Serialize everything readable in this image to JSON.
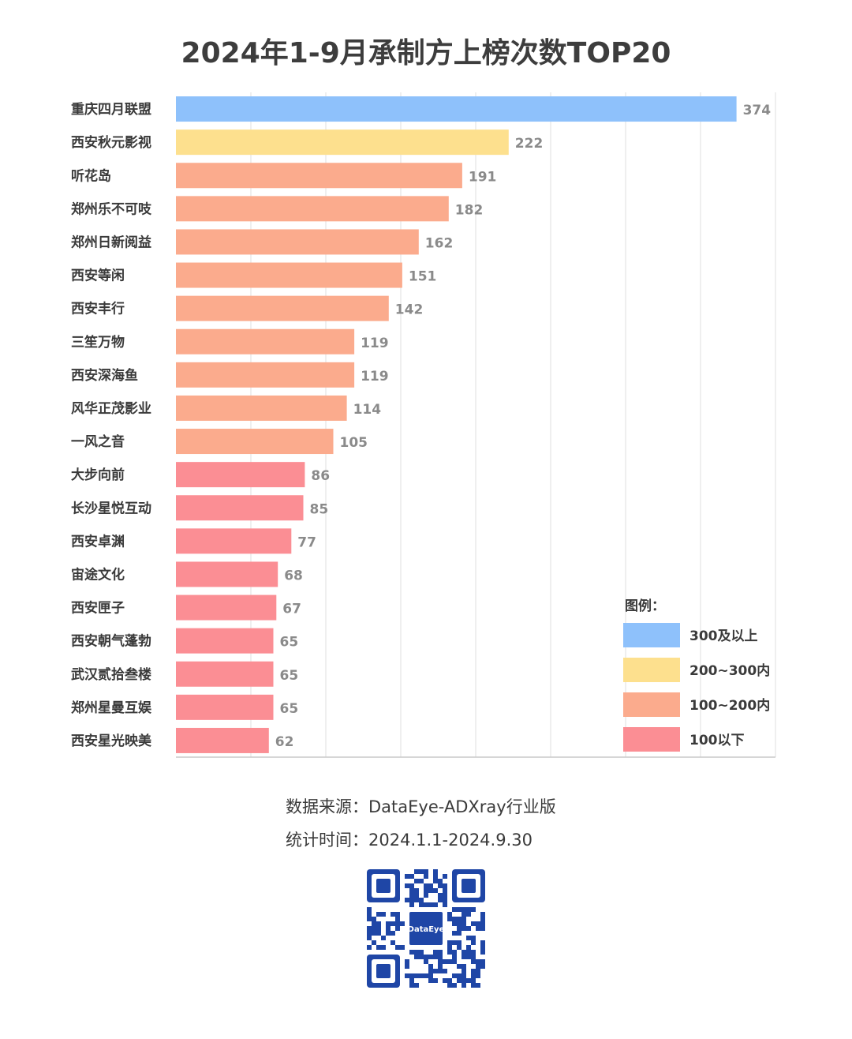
{
  "title": "2024年1-9月承制方上榜次数TOP20",
  "chart_data": {
    "type": "bar",
    "orientation": "horizontal",
    "title": "2024年1-9月承制方上榜次数TOP20",
    "categories": [
      "重庆四月联盟",
      "西安秋元影视",
      "听花岛",
      "郑州乐不可吱",
      "郑州日新阅益",
      "西安等闲",
      "西安丰行",
      "三笙万物",
      "西安深海鱼",
      "风华正茂影业",
      "一风之音",
      "大步向前",
      "长沙星悦互动",
      "西安卓渊",
      "宙途文化",
      "西安匣子",
      "西安朝气蓬勃",
      "武汉贰拾叁楼",
      "郑州星曼互娱",
      "西安星光映美"
    ],
    "values": [
      374,
      222,
      191,
      182,
      162,
      151,
      142,
      119,
      119,
      114,
      105,
      86,
      85,
      77,
      68,
      67,
      65,
      65,
      65,
      62
    ],
    "xlim": [
      0,
      400
    ],
    "grid": true,
    "legend": {
      "title": "图例：",
      "position": "bottom-right",
      "items": [
        {
          "label": "300及以上",
          "color": "#8ec1fb"
        },
        {
          "label": "200~300内",
          "color": "#fde08e"
        },
        {
          "label": "100~200内",
          "color": "#fbab8d"
        },
        {
          "label": "100以下",
          "color": "#fb8e94"
        }
      ]
    }
  },
  "source": {
    "line1": "数据来源：DataEye-ADXray行业版",
    "line2": "统计时间：2024.1.1-2024.9.30"
  },
  "qr": {
    "brand": "DataEye",
    "color": "#1f46a6"
  }
}
